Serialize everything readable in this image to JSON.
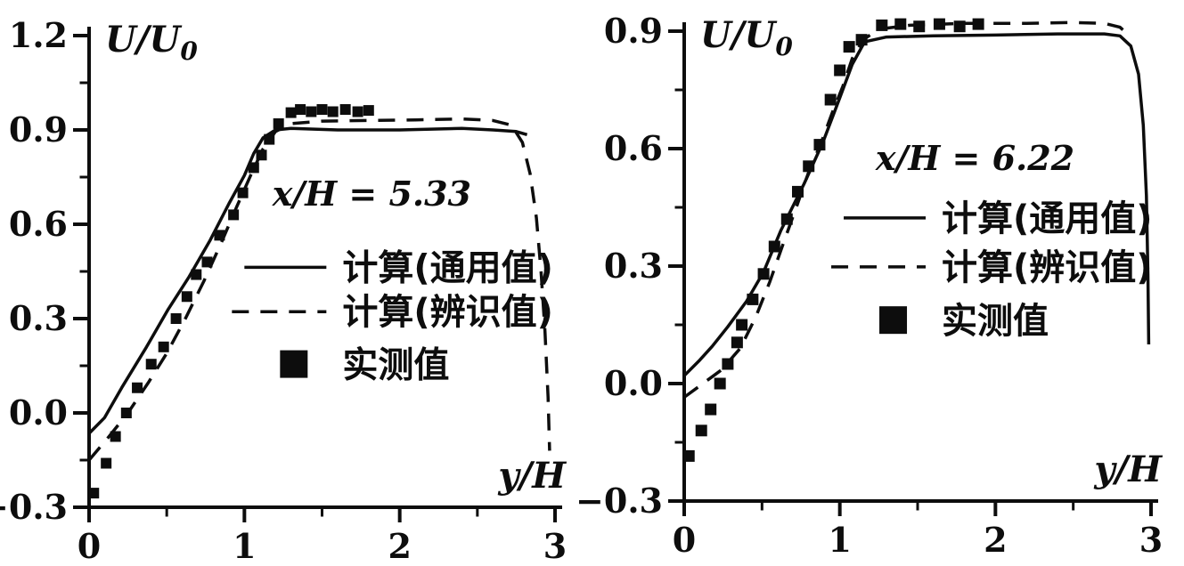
{
  "page": {
    "background": "#ffffff",
    "ink": "#0d0d0d"
  },
  "chart_data": [
    {
      "id": "xh-5-33",
      "type": "line",
      "title": "",
      "xlabel": "y/H",
      "ylabel": "U/U",
      "ylabel_sub": "0",
      "annotation": "x/H = 5.33",
      "annotation_pos": [
        1.18,
        0.66
      ],
      "x_range": [
        0,
        3
      ],
      "y_range": [
        -0.3,
        1.2
      ],
      "x_ticks": [
        {
          "v": 0,
          "label": "0"
        },
        {
          "v": 1,
          "label": "1"
        },
        {
          "v": 2,
          "label": "2"
        },
        {
          "v": 3,
          "label": "3"
        }
      ],
      "x_minor_ticks": [
        0.5,
        1.5,
        2.5
      ],
      "y_ticks": [
        {
          "v": 1.2,
          "label": "1.2"
        },
        {
          "v": 0.9,
          "label": "0.9"
        },
        {
          "v": 0.6,
          "label": "0.6"
        },
        {
          "v": 0.3,
          "label": "0.3"
        },
        {
          "v": 0.0,
          "label": "0.0"
        },
        {
          "v": -0.3,
          "label": "−0.3"
        }
      ],
      "y_minor_ticks": [
        1.05,
        0.75,
        0.45,
        0.15,
        -0.15
      ],
      "grid": false,
      "legend": {
        "pos_x": 1.0,
        "rows_y": [
          0.463,
          0.322,
          0.154
        ],
        "items": [
          {
            "marker": "solid-line",
            "label": "计算(通用值)"
          },
          {
            "marker": "dashed-line",
            "label": "计算(辨识值)"
          },
          {
            "marker": "filled-square",
            "label": "实测值"
          }
        ]
      },
      "series": [
        {
          "name": "计算(通用值)",
          "style": "solid",
          "points": [
            [
              0,
              -0.065
            ],
            [
              0.1,
              -0.015
            ],
            [
              0.21,
              0.08
            ],
            [
              0.37,
              0.21
            ],
            [
              0.51,
              0.33
            ],
            [
              0.64,
              0.43
            ],
            [
              0.78,
              0.55
            ],
            [
              0.9,
              0.665
            ],
            [
              1.0,
              0.755
            ],
            [
              1.06,
              0.825
            ],
            [
              1.12,
              0.875
            ],
            [
              1.2,
              0.9
            ],
            [
              1.3,
              0.905
            ],
            [
              1.6,
              0.9
            ],
            [
              2.0,
              0.9
            ],
            [
              2.4,
              0.905
            ],
            [
              2.6,
              0.9
            ],
            [
              2.75,
              0.895
            ],
            [
              2.82,
              0.885
            ]
          ]
        },
        {
          "name": "计算(辨识值)",
          "style": "dashed",
          "points": [
            [
              0,
              -0.15
            ],
            [
              0.12,
              -0.08
            ],
            [
              0.25,
              0.0
            ],
            [
              0.38,
              0.095
            ],
            [
              0.5,
              0.19
            ],
            [
              0.62,
              0.3
            ],
            [
              0.74,
              0.42
            ],
            [
              0.85,
              0.54
            ],
            [
              0.95,
              0.655
            ],
            [
              1.04,
              0.755
            ],
            [
              1.12,
              0.84
            ],
            [
              1.2,
              0.895
            ],
            [
              1.3,
              0.92
            ],
            [
              1.5,
              0.928
            ],
            [
              1.8,
              0.93
            ],
            [
              2.1,
              0.932
            ],
            [
              2.4,
              0.935
            ],
            [
              2.6,
              0.93
            ],
            [
              2.72,
              0.915
            ],
            [
              2.79,
              0.86
            ],
            [
              2.84,
              0.76
            ],
            [
              2.88,
              0.62
            ],
            [
              2.91,
              0.45
            ],
            [
              2.935,
              0.26
            ],
            [
              2.955,
              0.05
            ],
            [
              2.965,
              -0.12
            ]
          ]
        },
        {
          "name": "实测值",
          "style": "scatter-square",
          "marker_size": 12,
          "points": [
            [
              0.03,
              -0.255
            ],
            [
              0.11,
              -0.16
            ],
            [
              0.17,
              -0.075
            ],
            [
              0.24,
              0.0
            ],
            [
              0.31,
              0.08
            ],
            [
              0.4,
              0.155
            ],
            [
              0.48,
              0.21
            ],
            [
              0.56,
              0.3
            ],
            [
              0.63,
              0.37
            ],
            [
              0.69,
              0.44
            ],
            [
              0.76,
              0.48
            ],
            [
              0.84,
              0.565
            ],
            [
              0.93,
              0.63
            ],
            [
              0.99,
              0.7
            ],
            [
              1.06,
              0.78
            ],
            [
              1.11,
              0.82
            ],
            [
              1.16,
              0.87
            ],
            [
              1.22,
              0.92
            ],
            [
              1.3,
              0.955
            ],
            [
              1.36,
              0.965
            ],
            [
              1.43,
              0.958
            ],
            [
              1.5,
              0.965
            ],
            [
              1.57,
              0.958
            ],
            [
              1.65,
              0.965
            ],
            [
              1.73,
              0.958
            ],
            [
              1.8,
              0.962
            ]
          ]
        }
      ]
    },
    {
      "id": "xh-6-22",
      "type": "line",
      "title": "",
      "xlabel": "y/H",
      "ylabel": "U/U",
      "ylabel_sub": "0",
      "annotation": "x/H = 6.22",
      "annotation_pos": [
        1.23,
        0.545
      ],
      "x_range": [
        0,
        3
      ],
      "y_range": [
        -0.3,
        0.9
      ],
      "x_ticks": [
        {
          "v": 0,
          "label": "0"
        },
        {
          "v": 1,
          "label": "1"
        },
        {
          "v": 2,
          "label": "2"
        },
        {
          "v": 3,
          "label": "3"
        }
      ],
      "x_minor_ticks": [
        0.5,
        1.5,
        2.5
      ],
      "y_ticks": [
        {
          "v": 0.9,
          "label": "0.9"
        },
        {
          "v": 0.6,
          "label": "0.6"
        },
        {
          "v": 0.3,
          "label": "0.3"
        },
        {
          "v": 0.0,
          "label": "0.0"
        },
        {
          "v": -0.3,
          "label": "−0.3"
        }
      ],
      "y_minor_ticks": [
        0.75,
        0.45,
        0.15,
        -0.15
      ],
      "grid": false,
      "legend": {
        "pos_x": 1.025,
        "rows_y": [
          0.423,
          0.298,
          0.161
        ],
        "items": [
          {
            "marker": "solid-line",
            "label": "计算(通用值)"
          },
          {
            "marker": "dashed-line",
            "label": "计算(辨识值)"
          },
          {
            "marker": "filled-square",
            "label": "实测值"
          }
        ]
      },
      "series": [
        {
          "name": "计算(通用值)",
          "style": "solid",
          "points": [
            [
              0,
              0.02
            ],
            [
              0.1,
              0.06
            ],
            [
              0.18,
              0.095
            ],
            [
              0.28,
              0.145
            ],
            [
              0.4,
              0.21
            ],
            [
              0.51,
              0.285
            ],
            [
              0.62,
              0.39
            ],
            [
              0.77,
              0.51
            ],
            [
              0.89,
              0.615
            ],
            [
              1.0,
              0.73
            ],
            [
              1.08,
              0.815
            ],
            [
              1.16,
              0.873
            ],
            [
              1.3,
              0.885
            ],
            [
              1.6,
              0.888
            ],
            [
              2.0,
              0.89
            ],
            [
              2.4,
              0.893
            ],
            [
              2.7,
              0.893
            ],
            [
              2.8,
              0.888
            ],
            [
              2.87,
              0.862
            ],
            [
              2.92,
              0.79
            ],
            [
              2.95,
              0.66
            ],
            [
              2.97,
              0.48
            ],
            [
              2.98,
              0.28
            ],
            [
              2.985,
              0.1
            ]
          ]
        },
        {
          "name": "计算(辨识值)",
          "style": "dashed",
          "points": [
            [
              0,
              -0.035
            ],
            [
              0.12,
              0.0
            ],
            [
              0.24,
              0.035
            ],
            [
              0.36,
              0.09
            ],
            [
              0.46,
              0.17
            ],
            [
              0.55,
              0.26
            ],
            [
              0.63,
              0.35
            ],
            [
              0.72,
              0.45
            ],
            [
              0.8,
              0.54
            ],
            [
              0.88,
              0.615
            ],
            [
              0.95,
              0.69
            ],
            [
              1.02,
              0.76
            ],
            [
              1.08,
              0.83
            ],
            [
              1.15,
              0.878
            ],
            [
              1.25,
              0.905
            ],
            [
              1.45,
              0.915
            ],
            [
              1.8,
              0.92
            ],
            [
              2.2,
              0.92
            ],
            [
              2.5,
              0.922
            ],
            [
              2.7,
              0.92
            ],
            [
              2.8,
              0.91
            ],
            [
              2.87,
              0.885
            ]
          ]
        },
        {
          "name": "实测值",
          "style": "scatter-square",
          "marker_size": 13,
          "points": [
            [
              0.03,
              -0.185
            ],
            [
              0.11,
              -0.12
            ],
            [
              0.17,
              -0.066
            ],
            [
              0.23,
              0.0
            ],
            [
              0.28,
              0.05
            ],
            [
              0.34,
              0.105
            ],
            [
              0.37,
              0.15
            ],
            [
              0.44,
              0.215
            ],
            [
              0.51,
              0.28
            ],
            [
              0.58,
              0.35
            ],
            [
              0.66,
              0.42
            ],
            [
              0.73,
              0.49
            ],
            [
              0.8,
              0.555
            ],
            [
              0.87,
              0.61
            ],
            [
              0.94,
              0.725
            ],
            [
              1.0,
              0.8
            ],
            [
              1.06,
              0.86
            ],
            [
              1.14,
              0.878
            ],
            [
              1.27,
              0.915
            ],
            [
              1.39,
              0.918
            ],
            [
              1.51,
              0.912
            ],
            [
              1.64,
              0.918
            ],
            [
              1.77,
              0.912
            ],
            [
              1.89,
              0.918
            ]
          ]
        }
      ]
    }
  ]
}
